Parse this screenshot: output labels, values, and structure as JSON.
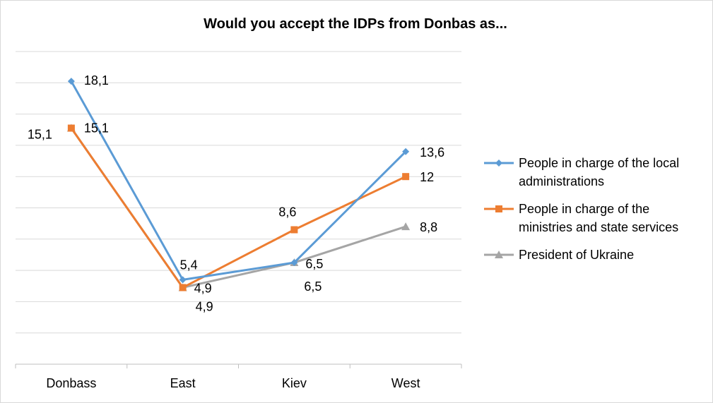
{
  "chart_data": {
    "type": "line",
    "title": "Would you accept the IDPs from Donbas as...",
    "categories": [
      "Donbass",
      "East",
      "Kiev",
      "West"
    ],
    "ylim": [
      0,
      20
    ],
    "grid": true,
    "legend_position": "right",
    "series": [
      {
        "name": "People in charge of the local administrations",
        "color": "#5b9bd5",
        "marker": "diamond",
        "values": [
          18.1,
          5.4,
          6.5,
          13.6
        ],
        "labels": [
          "18,1",
          "5,4",
          "6,5",
          "13,6"
        ]
      },
      {
        "name": "People in charge of the ministries and state services",
        "color": "#ed7d31",
        "marker": "square",
        "values": [
          15.1,
          4.9,
          8.6,
          12
        ],
        "labels": [
          "15,1",
          "4,9",
          "8,6",
          "12"
        ]
      },
      {
        "name": "President of Ukraine",
        "color": "#a5a5a5",
        "marker": "triangle",
        "values": [
          15.1,
          4.9,
          6.5,
          8.8
        ],
        "labels": [
          "15,1",
          "4,9",
          "6,5",
          "8,8"
        ]
      }
    ],
    "legend_lines": [
      [
        "People in charge of the local",
        "administrations"
      ],
      [
        "People in charge of the",
        "ministries and state services"
      ],
      [
        "President of Ukraine"
      ]
    ]
  }
}
